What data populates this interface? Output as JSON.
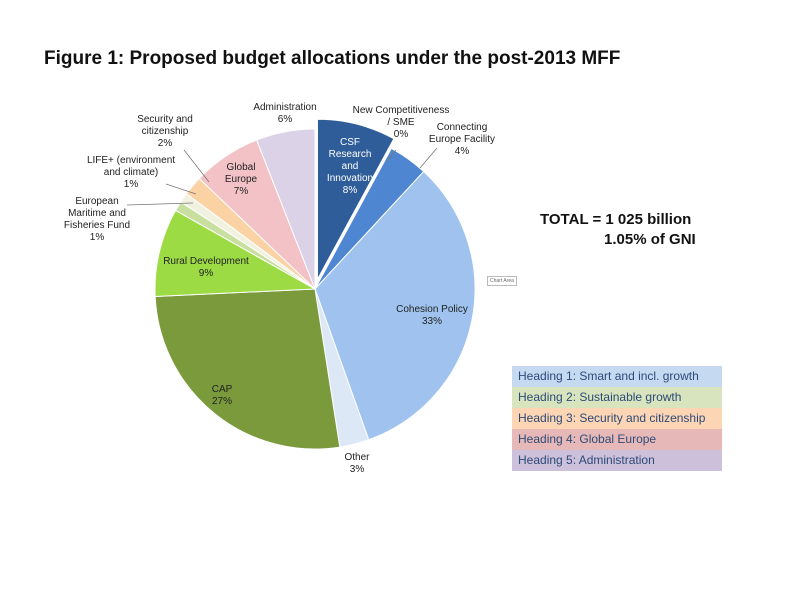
{
  "title": "Figure 1: Proposed budget allocations under the post-2013 MFF",
  "total": {
    "line1": "TOTAL = 1 025 billion",
    "line2": "1.05% of GNI"
  },
  "chart_area_tag": "Chart Area",
  "legend": [
    {
      "label": "Heading 1: Smart and incl. growth",
      "color": "#c5d9f1"
    },
    {
      "label": "Heading 2: Sustainable growth",
      "color": "#d7e4bd"
    },
    {
      "label": "Heading 3: Security and citizenship",
      "color": "#fcd5b4"
    },
    {
      "label": "Heading 4: Global Europe",
      "color": "#e6b9b8"
    },
    {
      "label": "Heading 5: Administration",
      "color": "#ccc0da"
    }
  ],
  "chart_data": {
    "type": "pie",
    "title": "Figure 1: Proposed budget allocations under the post-2013 MFF",
    "unit": "%",
    "slices": [
      {
        "label": [
          "CSF",
          "Research",
          "and",
          "Innovation"
        ],
        "value": 8,
        "value_text": "8%",
        "color": "#2e5d9a"
      },
      {
        "label": [
          "Connecting",
          "Europe Facility"
        ],
        "value": 4,
        "value_text": "4%",
        "color": "#4f86d1"
      },
      {
        "label": [
          "Cohesion Policy"
        ],
        "value": 33,
        "value_text": "33%",
        "color": "#9fc3ee"
      },
      {
        "label": [
          "Other"
        ],
        "value": 3,
        "value_text": "3%",
        "color": "#dce8f6"
      },
      {
        "label": [
          "CAP"
        ],
        "value": 27,
        "value_text": "27%",
        "color": "#7a9a3c"
      },
      {
        "label": [
          "Rural Development"
        ],
        "value": 9,
        "value_text": "9%",
        "color": "#9ddb45"
      },
      {
        "label": [
          "European",
          "Maritime and",
          "Fisheries Fund"
        ],
        "value": 1,
        "value_text": "1%",
        "color": "#c9dfa0"
      },
      {
        "label": [
          "LIFE+ (environment",
          "and climate)"
        ],
        "value": 1,
        "value_text": "1%",
        "color": "#f1f1e0"
      },
      {
        "label": [
          "Security and",
          "citizenship"
        ],
        "value": 2,
        "value_text": "2%",
        "color": "#fad2a4"
      },
      {
        "label": [
          "Global",
          "Europe"
        ],
        "value": 7,
        "value_text": "7%",
        "color": "#f2c2c6"
      },
      {
        "label": [
          "Administration"
        ],
        "value": 6,
        "value_text": "6%",
        "color": "#dcd2e8"
      },
      {
        "label": [
          "New Competitiveness",
          "/ SME"
        ],
        "value": 0,
        "value_text": "0%",
        "color": "#1f4e8c"
      }
    ]
  }
}
